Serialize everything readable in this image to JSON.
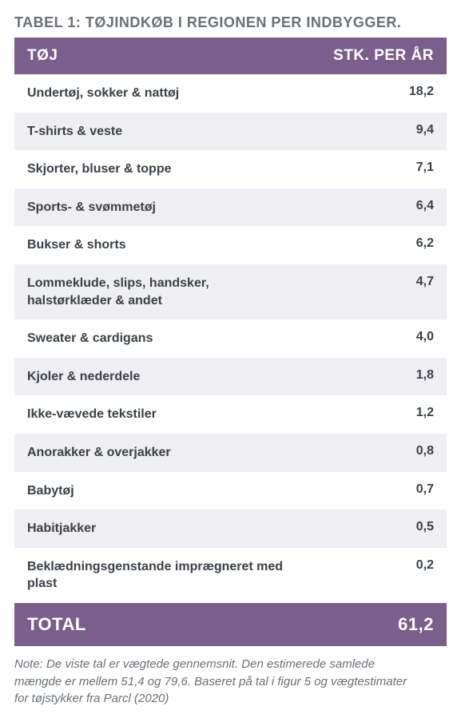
{
  "title": "TABEL 1: TØJINDKØB I REGIONEN PER INDBYGGER.",
  "colors": {
    "header_bg": "#7c5e8c",
    "header_text": "#ffffff",
    "row_even_bg": "#ffffff",
    "row_odd_bg": "#efeef3",
    "text": "#3b3f47",
    "title_text": "#6b6f78",
    "note_text": "#6b6f78"
  },
  "typography": {
    "title_fontsize": 18,
    "header_fontsize": 19,
    "row_fontsize": 16,
    "total_fontsize": 22,
    "note_fontsize": 15,
    "font_family": "Segoe UI, Arial, sans-serif"
  },
  "columns": {
    "left": "TØJ",
    "right": "STK. PER ÅR"
  },
  "rows": [
    {
      "label": "Undertøj, sokker & nattøj",
      "value": "18,2"
    },
    {
      "label": "T-shirts & veste",
      "value": "9,4"
    },
    {
      "label": "Skjorter, bluser & toppe",
      "value": "7,1"
    },
    {
      "label": "Sports- & svømmetøj",
      "value": "6,4"
    },
    {
      "label": "Bukser & shorts",
      "value": "6,2"
    },
    {
      "label": "Lommeklude, slips, handsker, halstørklæder & andet",
      "value": "4,7"
    },
    {
      "label": "Sweater & cardigans",
      "value": "4,0"
    },
    {
      "label": "Kjoler & nederdele",
      "value": "1,8"
    },
    {
      "label": "Ikke-vævede tekstiler",
      "value": "1,2"
    },
    {
      "label": "Anorakker & overjakker",
      "value": "0,8"
    },
    {
      "label": "Babytøj",
      "value": "0,7"
    },
    {
      "label": "Habitjakker",
      "value": "0,5"
    },
    {
      "label": "Beklædningsgenstande imprægneret med plast",
      "value": "0,2"
    }
  ],
  "total": {
    "label": "TOTAL",
    "value": "61,2"
  },
  "note": "Note: De viste tal er vægtede gennemsnit. Den estimerede samlede mængde er mellem 51,4 og 79,6. Baseret på tal i figur 5 og vægtestimater for tøjstykker fra Parcl (2020)"
}
